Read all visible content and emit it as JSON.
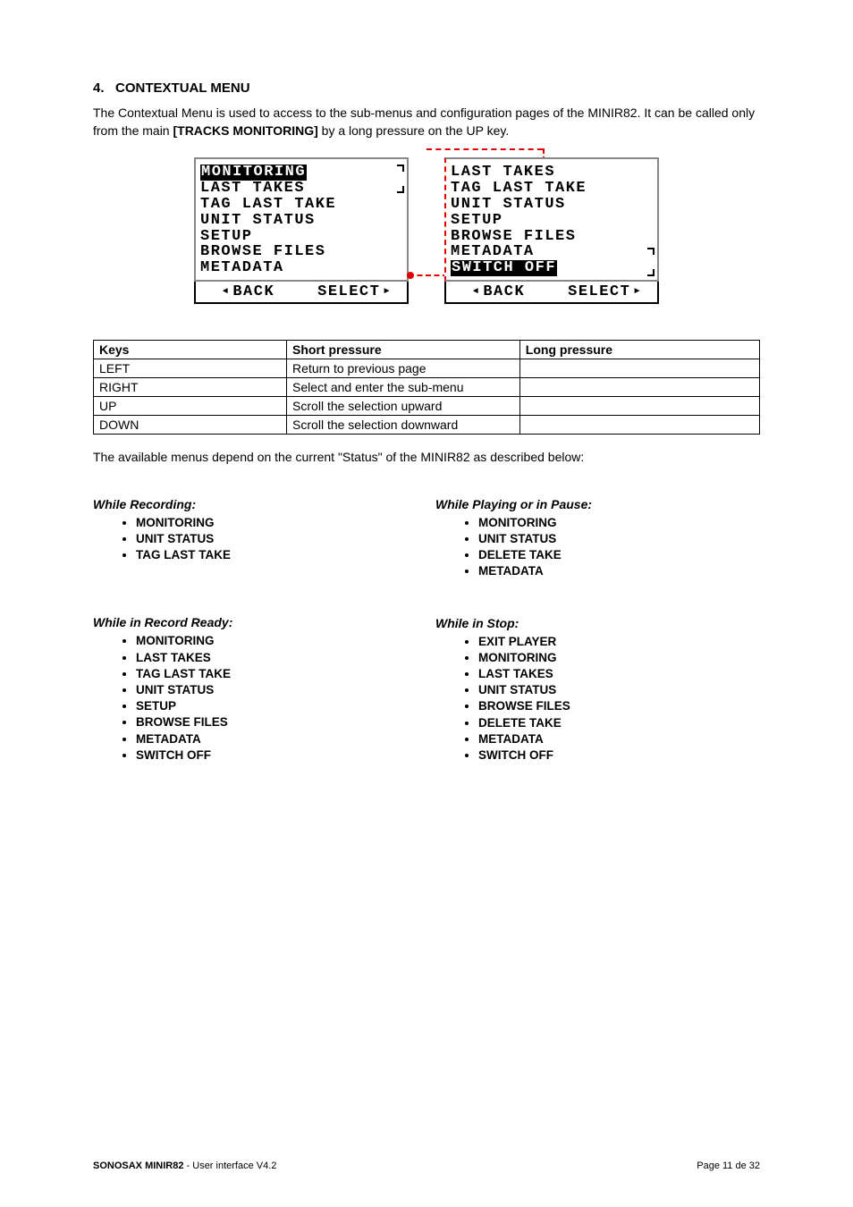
{
  "section": {
    "number": "4.",
    "title": "CONTEXTUAL MENU"
  },
  "intro": {
    "p1a": "The Contextual Menu is used to access to the sub-menus and configuration pages of the MINIR82. It can be called only from the main ",
    "p1b": "[TRACKS MONITORING]",
    "p1c": " by a long pressure on the UP key."
  },
  "lcd_left": {
    "rows": [
      "MONITORING",
      "LAST TAKES",
      "TAG LAST TAKE",
      "UNIT STATUS",
      "SETUP",
      "BROWSE FILES",
      "METADATA"
    ],
    "highlight_index": 0,
    "scroll_top": true,
    "back": "BACK",
    "select": "SELECT"
  },
  "lcd_right": {
    "rows": [
      "LAST TAKES",
      "TAG LAST TAKE",
      "UNIT STATUS",
      "SETUP",
      "BROWSE FILES",
      "METADATA",
      "SWITCH OFF"
    ],
    "highlight_index": 6,
    "scroll_top": false,
    "back": "BACK",
    "select": "SELECT"
  },
  "keys_table": {
    "headers": [
      "Keys",
      "Short pressure",
      "Long pressure"
    ],
    "rows": [
      [
        "LEFT",
        "Return to previous page",
        ""
      ],
      [
        "RIGHT",
        "Select and enter the sub-menu",
        ""
      ],
      [
        "UP",
        "Scroll the selection upward",
        ""
      ],
      [
        "DOWN",
        "Scroll the selection downward",
        ""
      ]
    ]
  },
  "note": "The available menus depend on the current \"Status\" of the MINIR82 as described below:",
  "menus": {
    "recording": {
      "title": "While Recording:",
      "items": [
        "MONITORING",
        "UNIT STATUS",
        "TAG LAST TAKE"
      ]
    },
    "record_ready": {
      "title": "While in Record Ready:",
      "items": [
        "MONITORING",
        "LAST TAKES",
        "TAG LAST TAKE",
        "UNIT STATUS",
        "SETUP",
        "BROWSE FILES",
        "METADATA",
        "SWITCH OFF"
      ]
    },
    "playing": {
      "title": "While Playing or in Pause:",
      "items": [
        "MONITORING",
        "UNIT STATUS",
        "DELETE TAKE",
        "METADATA"
      ]
    },
    "stop": {
      "title": "While in Stop:",
      "items": [
        "EXIT PLAYER",
        "MONITORING",
        "LAST TAKES",
        "UNIT STATUS",
        "BROWSE FILES",
        "DELETE TAKE",
        "METADATA",
        "SWITCH OFF"
      ]
    }
  },
  "footer": {
    "brand": "SONOSAX MINIR82",
    "rest": "  -  User interface  V4.2",
    "page": "Page 11 de 32"
  }
}
